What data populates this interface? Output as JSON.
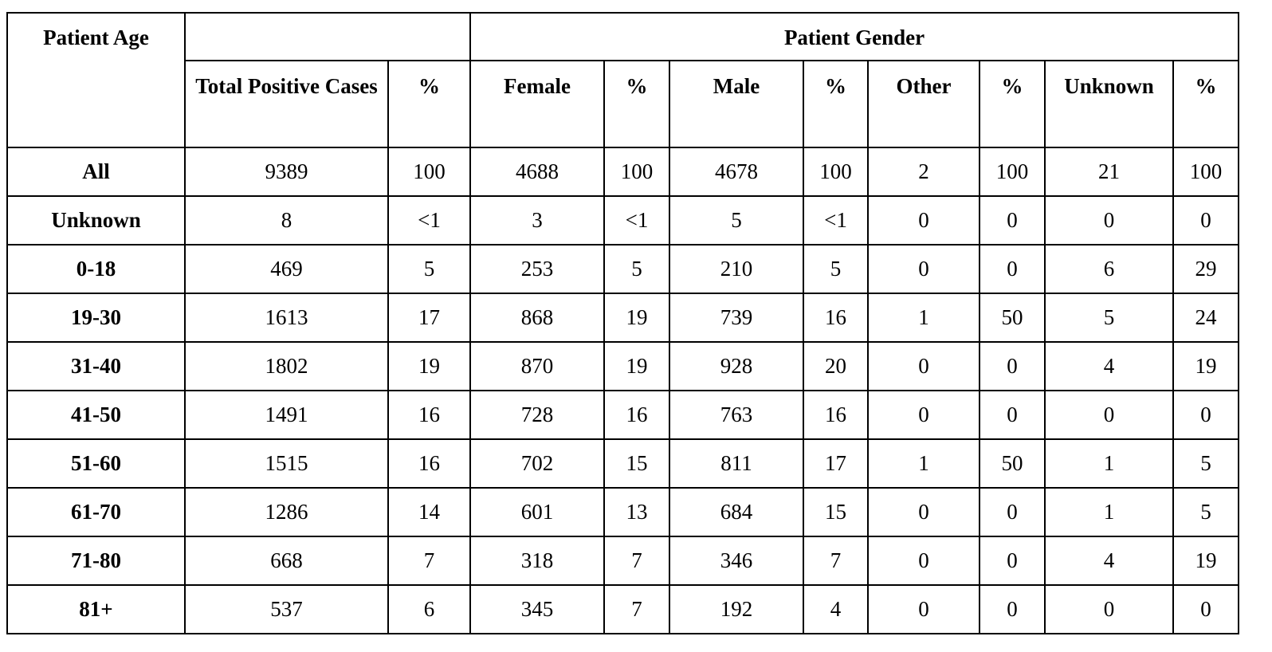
{
  "header": {
    "age_label": "Patient Age",
    "gender_label": "Patient Gender",
    "columns": [
      "Total Positive Cases",
      "%",
      "Female",
      "%",
      "Male",
      "%",
      "Other",
      "%",
      "Unknown",
      "%"
    ]
  },
  "rows": [
    [
      "All",
      9389,
      100,
      4688,
      100,
      4678,
      100,
      2,
      100,
      21,
      100
    ],
    [
      "Unknown",
      8,
      "<1",
      3,
      "<1",
      5,
      "<1",
      0,
      0,
      0,
      0
    ],
    [
      "0-18",
      469,
      5,
      253,
      5,
      210,
      5,
      0,
      0,
      6,
      29
    ],
    [
      "19-30",
      1613,
      17,
      868,
      19,
      739,
      16,
      1,
      50,
      5,
      24
    ],
    [
      "31-40",
      1802,
      19,
      870,
      19,
      928,
      20,
      0,
      0,
      4,
      19
    ],
    [
      "41-50",
      1491,
      16,
      728,
      16,
      763,
      16,
      0,
      0,
      0,
      0
    ],
    [
      "51-60",
      1515,
      16,
      702,
      15,
      811,
      17,
      1,
      50,
      1,
      5
    ],
    [
      "61-70",
      1286,
      14,
      601,
      13,
      684,
      15,
      0,
      0,
      1,
      5
    ],
    [
      "71-80",
      668,
      7,
      318,
      7,
      346,
      7,
      0,
      0,
      4,
      19
    ],
    [
      "81+",
      537,
      6,
      345,
      7,
      192,
      4,
      0,
      0,
      0,
      0
    ]
  ]
}
